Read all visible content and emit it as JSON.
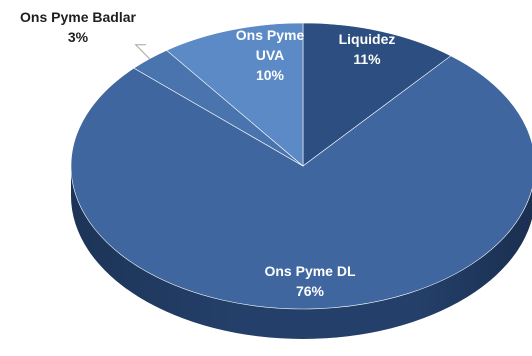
{
  "chart_data": {
    "type": "pie",
    "title": "",
    "legend": "none",
    "labels_shown": "category and percentage",
    "slices": [
      {
        "name": "Liquidez",
        "value": 11,
        "label": "11%",
        "color": "#2c4e80"
      },
      {
        "name": "Ons Pyme DL",
        "value": 76,
        "label": "76%",
        "color": "#3f669e"
      },
      {
        "name": "Ons Pyme Badlar",
        "value": 3,
        "label": "3%",
        "color": "#4a74ad"
      },
      {
        "name": "Ons Pyme UVA",
        "value": 10,
        "label": "10%",
        "color": "#5b8ac6"
      }
    ]
  },
  "labels": {
    "liquidez": {
      "name": "Liquidez",
      "pct": "11%"
    },
    "dl": {
      "name": "Ons Pyme DL",
      "pct": "76%"
    },
    "badlar": {
      "name": "Ons Pyme Badlar",
      "pct": "3%"
    },
    "uva": {
      "name_line1": "Ons Pyme",
      "name_line2": "UVA",
      "pct": "10%"
    }
  }
}
